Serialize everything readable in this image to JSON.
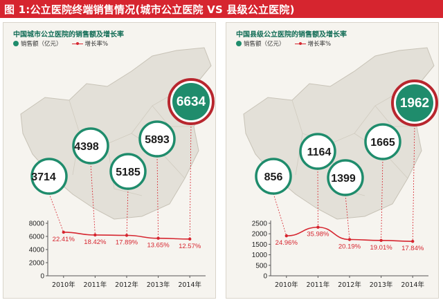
{
  "banner": {
    "title": "图 1:公立医院终端销售情况(城市公立医院 VS 县级公立医院)"
  },
  "colors": {
    "banner": "#d6252f",
    "bubble": "#1f8c6c",
    "bubble_highlight": "#b8262e",
    "growth_line": "#d6252f"
  },
  "legend": {
    "sales": "销售额（亿元）",
    "growth": "增长率%"
  },
  "chart_data": [
    {
      "type": "bar",
      "title": "中国城市公立医院的销售额及增长率",
      "categories": [
        "2010年",
        "2011年",
        "2012年",
        "2013年",
        "2014年"
      ],
      "series": [
        {
          "name": "销售额（亿元）",
          "values": [
            3714,
            4398,
            5185,
            5893,
            6634
          ]
        },
        {
          "name": "增长率%",
          "values": [
            22.41,
            18.42,
            17.89,
            13.65,
            12.57
          ]
        }
      ],
      "growth_labels": [
        "22.41%",
        "18.42%",
        "17.89%",
        "13.65%",
        "12.57%"
      ],
      "y_ticks": [
        0,
        2000,
        4000,
        6000,
        8000
      ],
      "ylim": [
        0,
        8000
      ]
    },
    {
      "type": "bar",
      "title": "中国县级公立医院的销售额及增长率",
      "categories": [
        "2010年",
        "2011年",
        "2012年",
        "2013年",
        "2014年"
      ],
      "series": [
        {
          "name": "销售额（亿元）",
          "values": [
            856,
            1164,
            1399,
            1665,
            1962
          ]
        },
        {
          "name": "增长率%",
          "values": [
            24.96,
            35.98,
            20.19,
            19.01,
            17.84
          ]
        }
      ],
      "growth_labels": [
        "24.96%",
        "35.98%",
        "20.19%",
        "19.01%",
        "17.84%"
      ],
      "y_ticks": [
        0,
        500,
        1000,
        1500,
        2000,
        2500
      ],
      "ylim": [
        0,
        2500
      ]
    }
  ]
}
